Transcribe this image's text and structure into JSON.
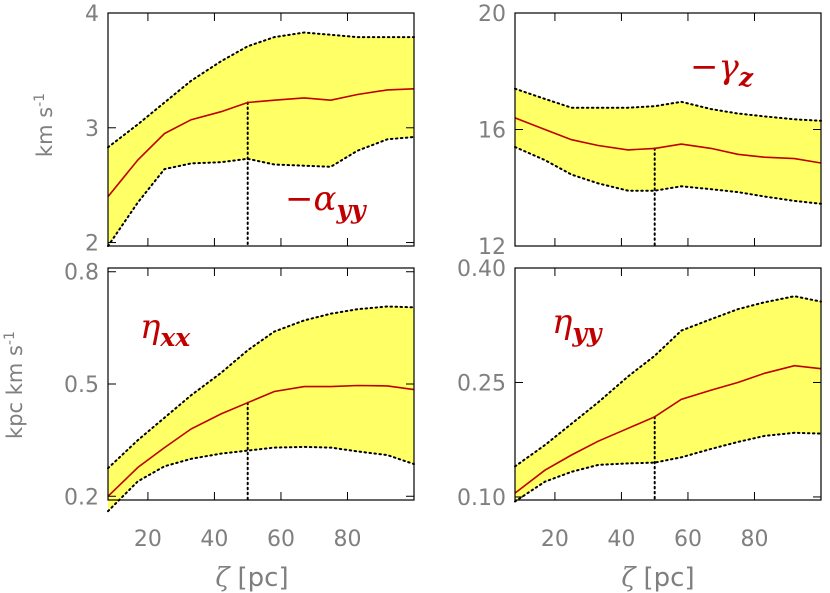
{
  "colors": {
    "band": "#ffff66",
    "line": "#c00000",
    "frame": "#000000",
    "tick_text": "#7f7f7f",
    "label_text": "#c00000"
  },
  "x_axis": {
    "symbol": "ζ",
    "unit": "[pc]"
  },
  "y_axis_labels": {
    "top": "km s",
    "top_sup": "-1",
    "bottom": "kpc km s",
    "bottom_sup": "-1"
  },
  "chart_data": [
    {
      "type": "area",
      "panel": "top-left",
      "label_prefix": "−",
      "label_symbol": "α",
      "label_sub": "yy",
      "x": [
        8,
        17,
        25,
        33,
        42,
        50,
        58,
        67,
        75,
        83,
        92,
        100
      ],
      "y": [
        2.4,
        2.72,
        2.95,
        3.07,
        3.14,
        3.22,
        3.24,
        3.26,
        3.24,
        3.29,
        3.33,
        3.34
      ],
      "y_upper": [
        2.83,
        3.03,
        3.22,
        3.41,
        3.58,
        3.71,
        3.79,
        3.83,
        3.81,
        3.79,
        3.79,
        3.79
      ],
      "y_lower": [
        1.97,
        2.35,
        2.64,
        2.69,
        2.7,
        2.73,
        2.68,
        2.67,
        2.66,
        2.8,
        2.9,
        2.92
      ],
      "xlim": [
        8,
        100
      ],
      "ylim": [
        1.97,
        4.0
      ],
      "yticks": [
        2,
        3,
        4
      ],
      "ytick_labels": [
        "2",
        "3",
        "4"
      ],
      "xticks": [
        20,
        40,
        60,
        80
      ],
      "xtick_labels": [
        "",
        "",
        "",
        ""
      ],
      "vline_x": 50,
      "grid": false
    },
    {
      "type": "area",
      "panel": "top-right",
      "label_prefix": "−",
      "label_symbol": "γ",
      "label_sub": "z",
      "x": [
        8,
        17,
        25,
        33,
        42,
        50,
        58,
        67,
        75,
        83,
        92,
        100
      ],
      "y": [
        16.4,
        16.0,
        15.65,
        15.45,
        15.3,
        15.35,
        15.5,
        15.35,
        15.15,
        15.05,
        15.0,
        14.85
      ],
      "y_upper": [
        17.4,
        17.05,
        16.75,
        16.75,
        16.75,
        16.8,
        16.95,
        16.7,
        16.55,
        16.45,
        16.35,
        16.3
      ],
      "y_lower": [
        15.4,
        14.95,
        14.45,
        14.15,
        13.9,
        13.9,
        14.05,
        13.95,
        13.85,
        13.7,
        13.55,
        13.45
      ],
      "xlim": [
        8,
        100
      ],
      "ylim": [
        12,
        20
      ],
      "yticks": [
        12,
        16,
        20
      ],
      "ytick_labels": [
        "12",
        "16",
        "20"
      ],
      "xticks": [
        20,
        40,
        60,
        80
      ],
      "xtick_labels": [
        "",
        "",
        "",
        ""
      ],
      "vline_x": 50,
      "grid": false
    },
    {
      "type": "area",
      "panel": "bottom-left",
      "label_prefix": "",
      "label_symbol": "η",
      "label_sub": "xx",
      "x": [
        8,
        17,
        25,
        33,
        42,
        50,
        58,
        67,
        75,
        83,
        92,
        100
      ],
      "y": [
        0.2,
        0.277,
        0.33,
        0.38,
        0.42,
        0.45,
        0.48,
        0.493,
        0.493,
        0.496,
        0.495,
        0.485
      ],
      "y_upper": [
        0.275,
        0.35,
        0.41,
        0.47,
        0.53,
        0.59,
        0.64,
        0.67,
        0.688,
        0.7,
        0.707,
        0.705
      ],
      "y_lower": [
        0.16,
        0.24,
        0.28,
        0.3,
        0.314,
        0.322,
        0.33,
        0.332,
        0.33,
        0.32,
        0.31,
        0.286
      ],
      "xlim": [
        8,
        100
      ],
      "ylim": [
        0.19,
        0.81
      ],
      "yticks": [
        0.2,
        0.5,
        0.8
      ],
      "ytick_labels": [
        "0.2",
        "0.5",
        "0.8"
      ],
      "xticks": [
        20,
        40,
        60,
        80
      ],
      "xtick_labels": [
        "20",
        "40",
        "60",
        "80"
      ],
      "vline_x": 50,
      "grid": false
    },
    {
      "type": "area",
      "panel": "bottom-right",
      "label_prefix": "",
      "label_symbol": "η",
      "label_sub": "yy",
      "x": [
        8,
        17,
        25,
        33,
        42,
        50,
        58,
        67,
        75,
        83,
        92,
        100
      ],
      "y": [
        0.105,
        0.135,
        0.155,
        0.173,
        0.19,
        0.205,
        0.228,
        0.24,
        0.25,
        0.262,
        0.272,
        0.268
      ],
      "y_upper": [
        0.14,
        0.168,
        0.196,
        0.224,
        0.258,
        0.285,
        0.318,
        0.333,
        0.346,
        0.355,
        0.363,
        0.356
      ],
      "y_lower": [
        0.094,
        0.12,
        0.133,
        0.142,
        0.144,
        0.145,
        0.152,
        0.163,
        0.172,
        0.18,
        0.184,
        0.183
      ],
      "xlim": [
        8,
        100
      ],
      "ylim": [
        0.096,
        0.4
      ],
      "yticks": [
        0.1,
        0.25,
        0.4
      ],
      "ytick_labels": [
        "0.10",
        "0.25",
        "0.40"
      ],
      "xticks": [
        20,
        40,
        60,
        80
      ],
      "xtick_labels": [
        "20",
        "40",
        "60",
        "80"
      ],
      "vline_x": 50,
      "grid": false
    }
  ]
}
